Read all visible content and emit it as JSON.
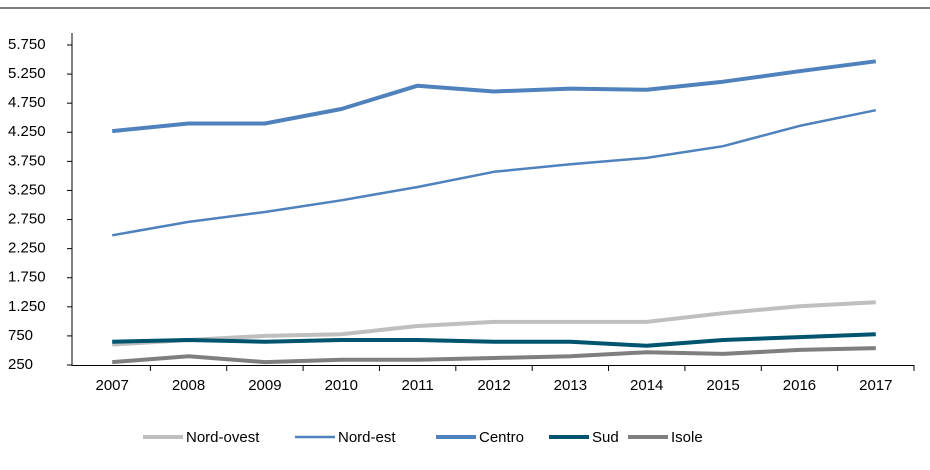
{
  "chart_data": {
    "type": "line",
    "categories": [
      "2007",
      "2008",
      "2009",
      "2010",
      "2011",
      "2012",
      "2013",
      "2014",
      "2015",
      "2016",
      "2017"
    ],
    "series": [
      {
        "name": "Nord-ovest",
        "color": "#bfbfbf",
        "values": [
          600,
          680,
          750,
          780,
          920,
          990,
          990,
          990,
          1140,
          1260,
          1330
        ]
      },
      {
        "name": "Nord-est",
        "color": "#4f81bd",
        "values": [
          2480,
          2710,
          2880,
          3080,
          3310,
          3570,
          3700,
          3810,
          4010,
          4360,
          4630
        ]
      },
      {
        "name": "Centro",
        "color": "#4f81bd",
        "values": [
          4270,
          4400,
          4400,
          4650,
          5050,
          4950,
          5000,
          4980,
          5120,
          5300,
          5470
        ]
      },
      {
        "name": "Sud",
        "color": "#00546e",
        "values": [
          650,
          680,
          650,
          680,
          680,
          650,
          650,
          580,
          680,
          730,
          780
        ]
      },
      {
        "name": "Isole",
        "color": "#7f7f7f",
        "values": [
          300,
          400,
          300,
          340,
          340,
          370,
          400,
          470,
          440,
          510,
          540
        ]
      }
    ],
    "ylim": [
      250,
      5750
    ],
    "yticks": [
      250,
      750,
      {
        "value": 1250,
        "label": "1.250"
      },
      {
        "value": 1750,
        "label": "1.750"
      },
      {
        "value": 2250,
        "label": "2.250"
      },
      {
        "value": 2750,
        "label": "2.750"
      },
      {
        "value": 3250,
        "label": "3.250"
      },
      {
        "value": 3750,
        "label": "3.750"
      },
      {
        "value": 4250,
        "label": "4.250"
      },
      {
        "value": 4750,
        "label": "4.750"
      },
      {
        "value": 5250,
        "label": "5.250"
      },
      {
        "value": 5750,
        "label": "5.750"
      }
    ],
    "grid": false,
    "legend": "bottom"
  }
}
